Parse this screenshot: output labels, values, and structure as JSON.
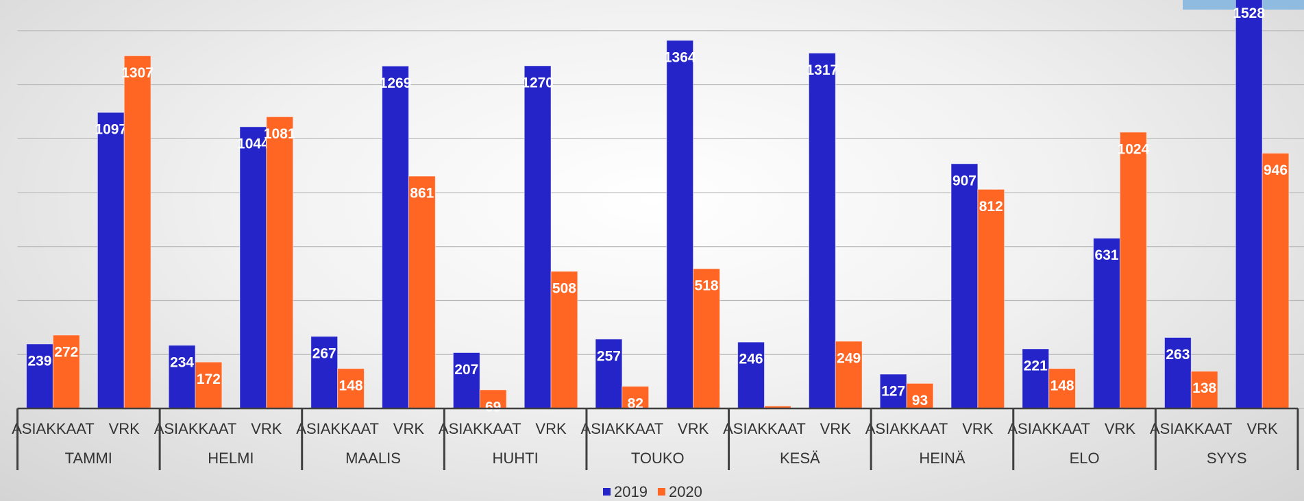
{
  "chart_data": {
    "type": "bar",
    "groups": [
      "TAMMI",
      "HELMI",
      "MAALIS",
      "HUHTI",
      "TOUKO",
      "KESÄ",
      "HEINÄ",
      "ELO",
      "SYYS"
    ],
    "subcategories": [
      "ASIAKKAAT",
      "VRK"
    ],
    "series": [
      {
        "name": "2019",
        "color": "#2424c8",
        "values": [
          [
            239,
            1097
          ],
          [
            234,
            1044
          ],
          [
            267,
            1269
          ],
          [
            207,
            1270
          ],
          [
            257,
            1364
          ],
          [
            246,
            1317
          ],
          [
            127,
            907
          ],
          [
            221,
            631
          ],
          [
            263,
            1528
          ]
        ]
      },
      {
        "name": "2020",
        "color": "#ff6624",
        "values": [
          [
            272,
            1307
          ],
          [
            172,
            1081
          ],
          [
            148,
            861
          ],
          [
            69,
            508
          ],
          [
            82,
            518
          ],
          [
            9,
            249
          ],
          [
            93,
            812
          ],
          [
            148,
            1024
          ],
          [
            138,
            946
          ]
        ]
      }
    ],
    "ylim": [
      0,
      1500
    ],
    "yticks": [
      0,
      200,
      400,
      600,
      800,
      1000,
      1200,
      1400
    ],
    "grid": true
  }
}
